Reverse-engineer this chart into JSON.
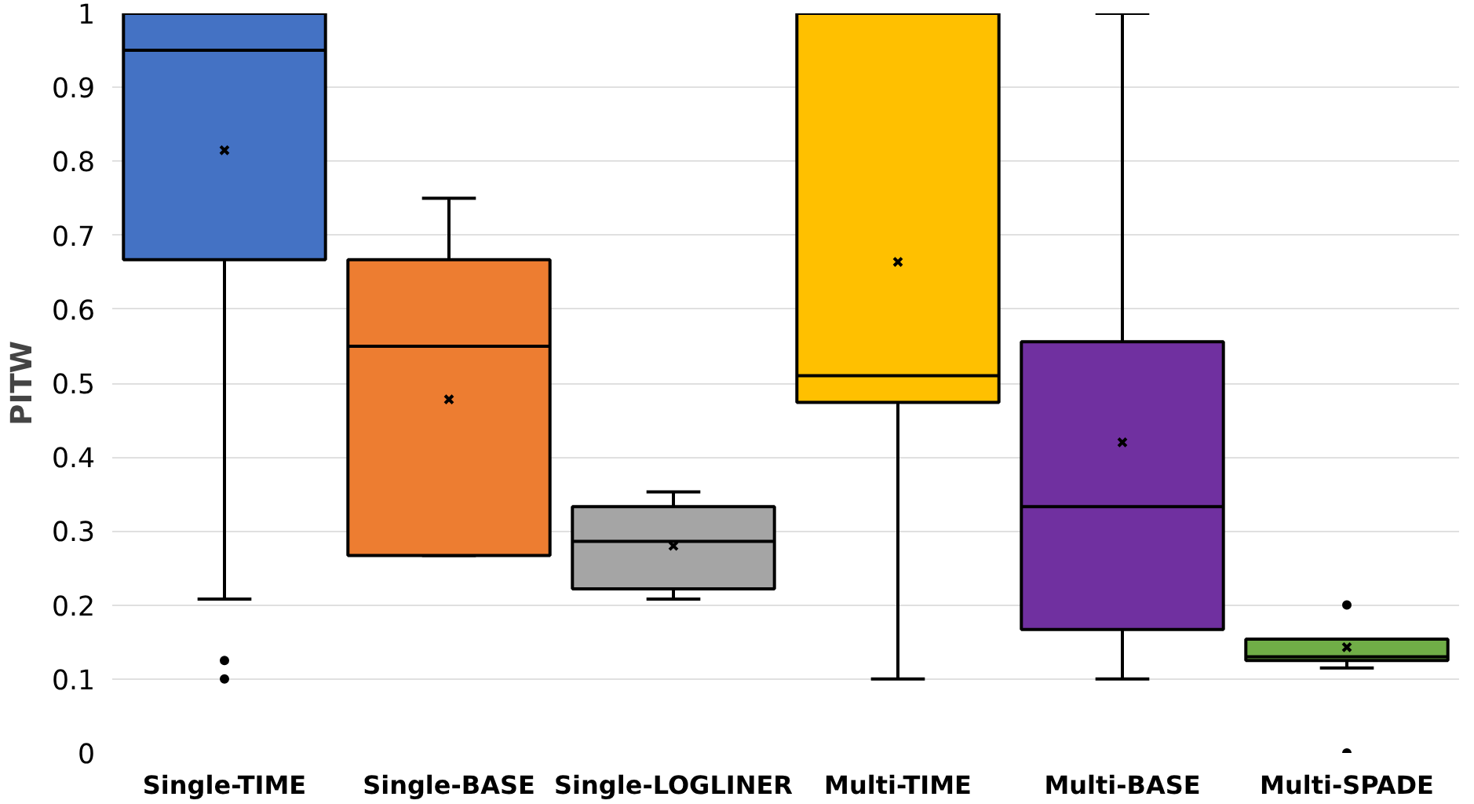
{
  "chart_data": {
    "type": "box",
    "ylabel": "PITW",
    "categories": [
      "Single-TIME",
      "Single-BASE",
      "Single-LOGLINER",
      "Multi-TIME",
      "Multi-BASE",
      "Multi-SPADE"
    ],
    "colors": [
      "#4472c4",
      "#ed7d31",
      "#a5a5a5",
      "#ffc000",
      "#7030a0",
      "#70ad47"
    ],
    "boxes": [
      {
        "low": 0.208,
        "q1": 0.667,
        "median": 0.95,
        "q3": 1,
        "high": 1,
        "mean": 0.815,
        "outliers": [
          0.125,
          0.1
        ]
      },
      {
        "low": 0.267,
        "q1": 0.267,
        "median": 0.55,
        "q3": 0.667,
        "high": 0.75,
        "mean": 0.478
      },
      {
        "low": 0.208,
        "q1": 0.222,
        "median": 0.286,
        "q3": 0.333,
        "high": 0.353,
        "mean": 0.28
      },
      {
        "low": 0.1,
        "q1": 0.474,
        "median": 0.51,
        "q3": 1,
        "high": 1,
        "mean": 0.664
      },
      {
        "low": 0.1,
        "q1": 0.167,
        "median": 0.333,
        "q3": 0.556,
        "high": 1,
        "mean": 0.42
      },
      {
        "low": 0.115,
        "q1": 0.125,
        "median": 0.13,
        "q3": 0.154,
        "high": 0.154,
        "mean": 0.143,
        "outliers": [
          0.2,
          0
        ]
      }
    ],
    "ylim": [
      0,
      1
    ],
    "yticks": [
      0,
      0.1,
      0.2,
      0.3,
      0.4,
      0.5,
      0.6,
      0.7,
      0.8,
      0.9,
      1
    ],
    "grid": "y"
  }
}
